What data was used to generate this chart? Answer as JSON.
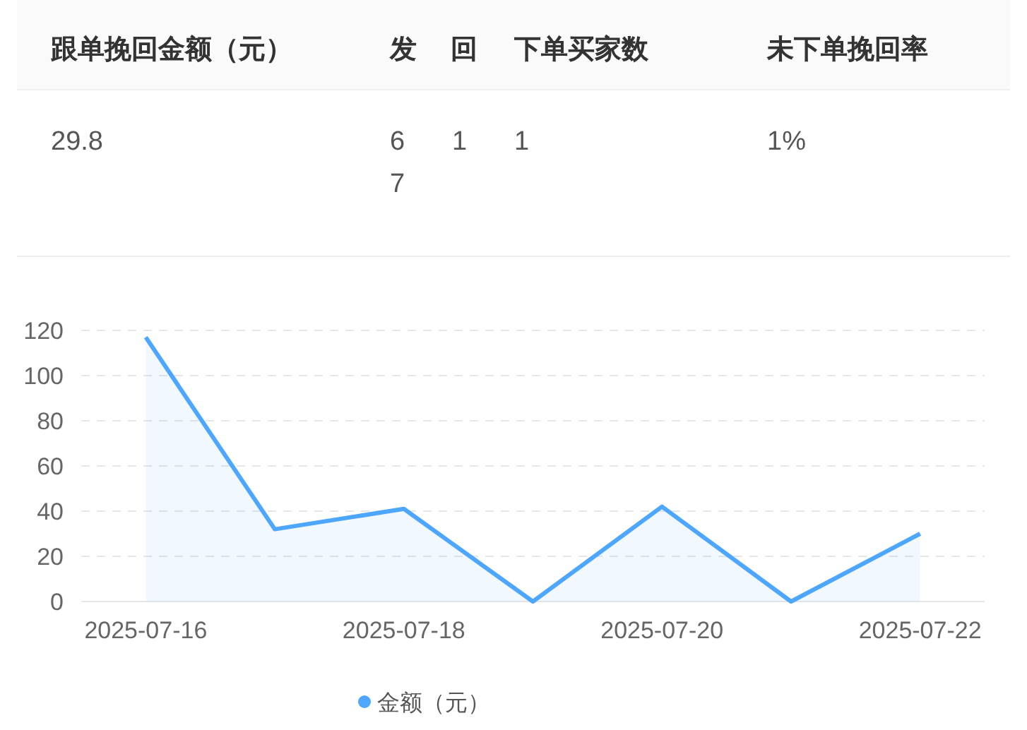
{
  "chart_data": [
    {
      "type": "other",
      "annotations": [
        "跟单挽回金额（元）",
        "发回",
        "下单买家数",
        "未下单挽回率",
        "29.8",
        "67",
        "1",
        "1",
        "1%"
      ]
    },
    {
      "type": "area",
      "categories": [
        "2025-07-16",
        null,
        "2025-07-18",
        null,
        "2025-07-20",
        null,
        "2025-07-22"
      ],
      "series": [
        {
          "name": "金额（元）",
          "color": "#4da6ff",
          "values": [
            117,
            32,
            41,
            0,
            42,
            0,
            30
          ]
        }
      ],
      "ylim": [
        0,
        120
      ],
      "yticks": [
        0,
        20,
        40,
        60,
        80,
        100,
        120
      ],
      "grid": "y",
      "legend": "bottom",
      "marker": "none",
      "line_style": "solid"
    }
  ]
}
